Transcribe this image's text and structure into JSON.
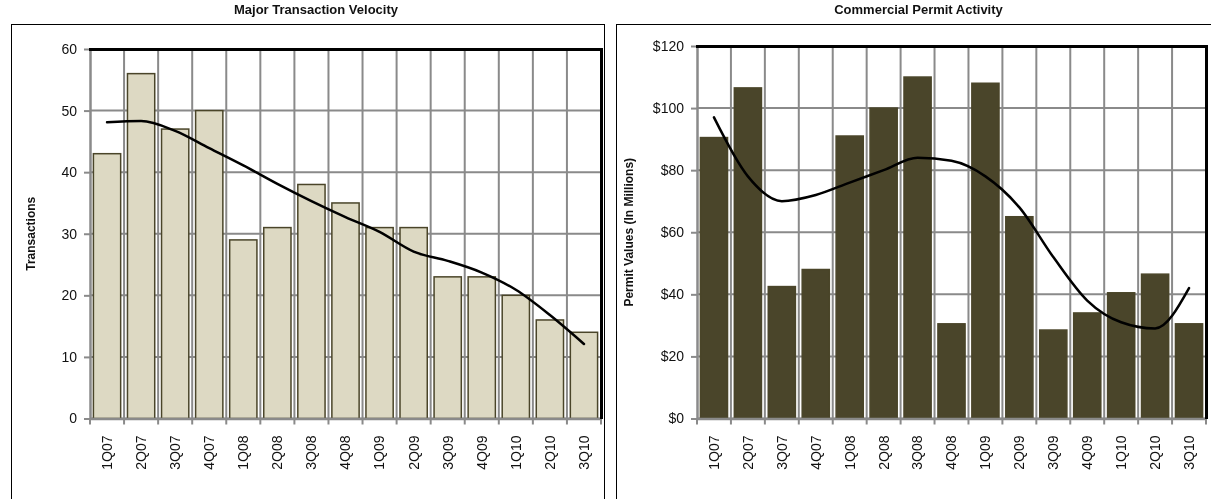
{
  "chart_data": [
    {
      "type": "bar",
      "title": "Major Transaction Velocity",
      "ylabel": "Transactions",
      "categories": [
        "1Q07",
        "2Q07",
        "3Q07",
        "4Q07",
        "1Q08",
        "2Q08",
        "3Q08",
        "4Q08",
        "1Q09",
        "2Q09",
        "3Q09",
        "4Q09",
        "1Q10",
        "2Q10",
        "3Q10"
      ],
      "series": [
        {
          "color": "#ddd9c3",
          "values": [
            43,
            56,
            47,
            50,
            29,
            31,
            38,
            35,
            31,
            31,
            23,
            23,
            20,
            16,
            14
          ]
        },
        {
          "type": "line",
          "color": "#000000",
          "values": [
            48.1,
            48.3,
            46.7,
            43.9,
            41.1,
            38.1,
            35.3,
            32.7,
            30.3,
            27.1,
            25.6,
            23.7,
            20.9,
            16.8,
            12.1
          ]
        }
      ],
      "ylim": [
        0,
        60
      ],
      "yticks": [
        0,
        10,
        20,
        30,
        40,
        50,
        60
      ],
      "grid": true
    },
    {
      "type": "bar",
      "title": "Commercial Permit Activity",
      "ylabel": "Permit Values (In Millions)",
      "categories": [
        "1Q07",
        "2Q07",
        "3Q07",
        "4Q07",
        "1Q08",
        "2Q08",
        "3Q08",
        "4Q08",
        "1Q09",
        "2Q09",
        "3Q09",
        "4Q09",
        "1Q10",
        "2Q10",
        "3Q10"
      ],
      "series": [
        {
          "color": "#4a452a",
          "values": [
            90.5,
            106.5,
            42.5,
            48,
            91,
            100,
            110,
            30.5,
            108,
            65,
            28.5,
            34,
            40.5,
            46.5,
            30.5
          ]
        },
        {
          "type": "line",
          "color": "#000000",
          "values": [
            97,
            78,
            70,
            72,
            76,
            80,
            84,
            83,
            78,
            68,
            52,
            38,
            31,
            29,
            42
          ]
        }
      ],
      "ylim": [
        0,
        120
      ],
      "yticks": [
        {
          "value": 0,
          "label": "$0"
        },
        {
          "value": 20,
          "label": "$20"
        },
        {
          "value": 40,
          "label": "$40"
        },
        {
          "value": 60,
          "label": "$60"
        },
        {
          "value": 80,
          "label": "$80"
        },
        {
          "value": 100,
          "label": "$100"
        },
        {
          "value": 120,
          "label": "$120"
        }
      ],
      "grid": true
    }
  ]
}
